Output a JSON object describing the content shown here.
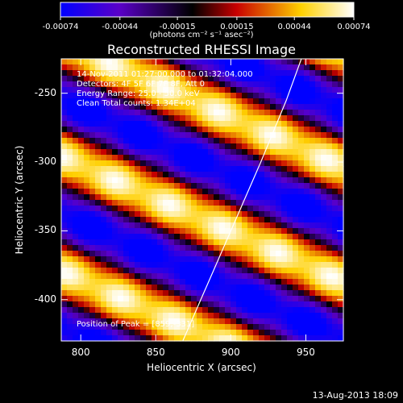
{
  "chart_data": {
    "type": "heatmap",
    "title": "Reconstructed RHESSI Image",
    "xlabel": "Heliocentric X (arcsec)",
    "ylabel": "Heliocentric Y (arcsec)",
    "xlim": [
      787,
      975
    ],
    "ylim": [
      -430,
      -225
    ],
    "x_ticks": [
      800,
      850,
      900,
      950
    ],
    "y_ticks": [
      -250,
      -300,
      -350,
      -400
    ],
    "colorbar": {
      "ticks": [
        -0.00074,
        -0.00044,
        -0.00015,
        0.00015,
        0.00044,
        0.00074
      ],
      "tick_labels": [
        "-0.00074",
        "-0.00044",
        "-0.00015",
        "0.00015",
        "0.00044",
        "0.00074"
      ],
      "range": [
        -0.00074,
        0.00074
      ],
      "units_label": "(photons cm⁻² s⁻¹ asec⁻²)",
      "colors": [
        "#0000ff",
        "#5a00c8",
        "#000000",
        "#c80000",
        "#ffd000",
        "#ffffff"
      ]
    },
    "annotations": [
      "14-Nov-2011 01:27:00.000 to 01:32:04.000",
      "Detectors: 4F 5F 6F 7F 8F, Att 0",
      "Energy Range: 25.0 - 50.0 keV",
      "Clean     Total counts: 1.34E+04"
    ],
    "peak_label": "Position of Peak = [859,-331]",
    "peak": [
      859,
      -331
    ],
    "limb_curve": [
      [
        868,
        -430
      ],
      [
        880,
        -400
      ],
      [
        900,
        -350
      ],
      [
        920,
        -300
      ],
      [
        937,
        -255
      ],
      [
        947,
        -225
      ]
    ]
  },
  "footer": "13-Aug-2013 18:09"
}
